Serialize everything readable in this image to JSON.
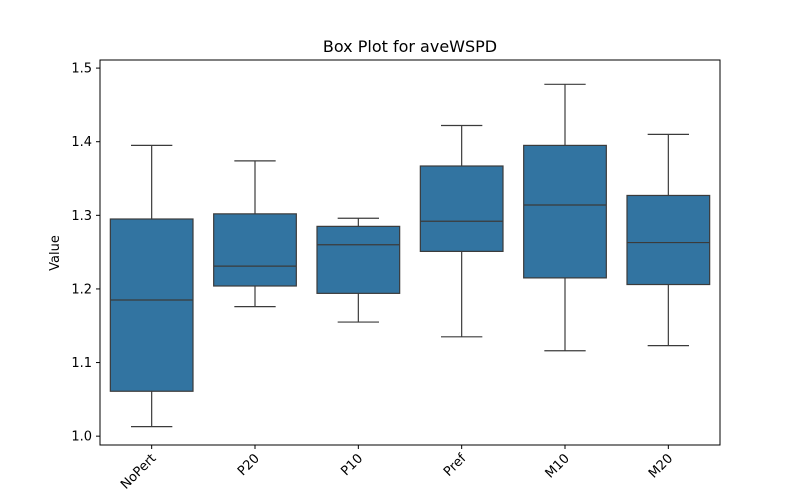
{
  "chart_data": {
    "type": "box",
    "title": "Box Plot for aveWSPD",
    "xlabel": "",
    "ylabel": "Value",
    "ylim": [
      0.988,
      1.511
    ],
    "yticks": [
      1.0,
      1.1,
      1.2,
      1.3,
      1.4,
      1.5
    ],
    "ytick_labels": [
      "1.0",
      "1.1",
      "1.2",
      "1.3",
      "1.4",
      "1.5"
    ],
    "grid": false,
    "box_color": "#3274a1",
    "line_color": "#3b3b3b",
    "categories": [
      "NoPert",
      "P20",
      "P10",
      "Pref",
      "M10",
      "M20"
    ],
    "boxes": [
      {
        "label": "NoPert",
        "whisker_low": 1.013,
        "q1": 1.061,
        "median": 1.185,
        "q3": 1.295,
        "whisker_high": 1.395
      },
      {
        "label": "P20",
        "whisker_low": 1.176,
        "q1": 1.204,
        "median": 1.231,
        "q3": 1.302,
        "whisker_high": 1.374
      },
      {
        "label": "P10",
        "whisker_low": 1.155,
        "q1": 1.194,
        "median": 1.26,
        "q3": 1.285,
        "whisker_high": 1.296
      },
      {
        "label": "Pref",
        "whisker_low": 1.135,
        "q1": 1.251,
        "median": 1.292,
        "q3": 1.367,
        "whisker_high": 1.422
      },
      {
        "label": "M10",
        "whisker_low": 1.116,
        "q1": 1.215,
        "median": 1.314,
        "q3": 1.395,
        "whisker_high": 1.478
      },
      {
        "label": "M20",
        "whisker_low": 1.123,
        "q1": 1.206,
        "median": 1.263,
        "q3": 1.327,
        "whisker_high": 1.41
      }
    ]
  }
}
